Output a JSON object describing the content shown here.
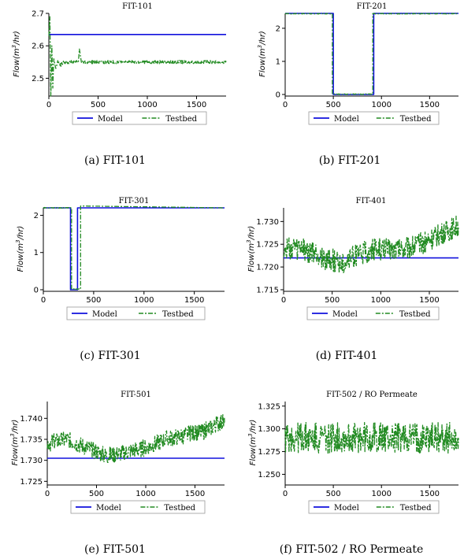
{
  "legend": {
    "model": "Model",
    "testbed": "Testbed"
  },
  "colors": {
    "model": "#1111dd",
    "testbed": "#228b22"
  },
  "chart_data": [
    {
      "type": "line",
      "title": "FIT-101",
      "caption": "(a) FIT-101",
      "ylabel_base": "Flow(m",
      "ylabel_sup": "3",
      "ylabel_tail": "/hr)",
      "xlim": [
        0,
        1800
      ],
      "ylim": [
        2.45,
        2.7
      ],
      "xticks": [
        0,
        500,
        1000,
        1500
      ],
      "yticks": [
        2.5,
        2.6,
        2.7
      ],
      "ytick_labels": [
        "2.5",
        "2.6",
        "2.7"
      ],
      "series": [
        {
          "name": "Model",
          "x": [
            0,
            1800
          ],
          "y": [
            2.635,
            2.635
          ]
        },
        {
          "name": "Testbed",
          "x": [
            0,
            10,
            20,
            30,
            40,
            50,
            70,
            90,
            120,
            150,
            200,
            250,
            300,
            310,
            330,
            400,
            500,
            600,
            700,
            800,
            900,
            1000,
            1100,
            1200,
            1300,
            1400,
            1500,
            1600,
            1700,
            1800
          ],
          "y": [
            2.63,
            2.69,
            2.43,
            2.6,
            2.47,
            2.56,
            2.53,
            2.55,
            2.54,
            2.55,
            2.55,
            2.55,
            2.55,
            2.59,
            2.55,
            2.55,
            2.55,
            2.55,
            2.55,
            2.55,
            2.55,
            2.55,
            2.55,
            2.55,
            2.55,
            2.55,
            2.55,
            2.55,
            2.55,
            2.55
          ],
          "noise": 0.005
        }
      ]
    },
    {
      "type": "line",
      "title": "FIT-201",
      "caption": "(b) FIT-201",
      "ylabel_base": "Flow(m",
      "ylabel_sup": "3",
      "ylabel_tail": "/hr)",
      "xlim": [
        0,
        1800
      ],
      "ylim": [
        0,
        2.45
      ],
      "xticks": [
        0,
        500,
        1000,
        1500
      ],
      "yticks": [
        0,
        1,
        2
      ],
      "ytick_labels": [
        "0",
        "1",
        "2"
      ],
      "series": [
        {
          "name": "Model",
          "x": [
            0,
            500,
            500,
            920,
            920,
            1800
          ],
          "y": [
            2.45,
            2.45,
            0,
            0,
            2.45,
            2.45
          ]
        },
        {
          "name": "Testbed",
          "x": [
            0,
            490,
            490,
            910,
            910,
            1800
          ],
          "y": [
            2.44,
            2.44,
            0.01,
            0.01,
            2.44,
            2.44
          ],
          "noise": 0.01
        }
      ]
    },
    {
      "type": "line",
      "title": "FIT-301",
      "caption": "(c) FIT-301",
      "ylabel_base": "Flow(m",
      "ylabel_sup": "3",
      "ylabel_tail": "/hr)",
      "xlim": [
        0,
        1800
      ],
      "ylim": [
        0,
        2.2
      ],
      "xticks": [
        0,
        500,
        1000,
        1500
      ],
      "yticks": [
        0,
        1,
        2
      ],
      "ytick_labels": [
        "0",
        "1",
        "2"
      ],
      "series": [
        {
          "name": "Model",
          "x": [
            0,
            270,
            270,
            340,
            340,
            1800
          ],
          "y": [
            2.2,
            2.2,
            0,
            0,
            2.2,
            2.2
          ]
        },
        {
          "name": "Testbed",
          "x": [
            0,
            280,
            280,
            370,
            370,
            1800
          ],
          "y": [
            2.2,
            2.2,
            0.02,
            0.02,
            2.25,
            2.2
          ],
          "noise": 0.01
        }
      ]
    },
    {
      "type": "line",
      "title": "FIT-401",
      "caption": "(d) FIT-401",
      "ylabel_base": "Flow(m",
      "ylabel_sup": "3",
      "ylabel_tail": "/hr)",
      "xlim": [
        0,
        1800
      ],
      "ylim": [
        1.715,
        1.733
      ],
      "xticks": [
        0,
        500,
        1000,
        1500
      ],
      "yticks": [
        1.715,
        1.72,
        1.725,
        1.73
      ],
      "ytick_labels": [
        "1.715",
        "1.720",
        "1.725",
        "1.730"
      ],
      "series": [
        {
          "name": "Model",
          "x": [
            0,
            1800
          ],
          "y": [
            1.722,
            1.722
          ]
        },
        {
          "name": "Testbed",
          "x": [
            0,
            200,
            400,
            600,
            800,
            1000,
            1200,
            1400,
            1600,
            1800
          ],
          "y": [
            1.724,
            1.724,
            1.722,
            1.721,
            1.723,
            1.724,
            1.724,
            1.725,
            1.727,
            1.729
          ],
          "noise": 0.0025
        }
      ]
    },
    {
      "type": "line",
      "title": "FIT-501",
      "caption": "(e) FIT-501",
      "ylabel_base": "Flow(m",
      "ylabel_sup": "3",
      "ylabel_tail": "/hr)",
      "xlim": [
        0,
        1800
      ],
      "ylim": [
        1.7245,
        1.744
      ],
      "xticks": [
        0,
        500,
        1000,
        1500
      ],
      "yticks": [
        1.725,
        1.73,
        1.735,
        1.74
      ],
      "ytick_labels": [
        "1.725",
        "1.730",
        "1.735",
        "1.740"
      ],
      "series": [
        {
          "name": "Model",
          "x": [
            0,
            1800
          ],
          "y": [
            1.7305,
            1.7305
          ]
        },
        {
          "name": "Testbed",
          "x": [
            0,
            200,
            400,
            600,
            800,
            1000,
            1200,
            1400,
            1600,
            1750,
            1800
          ],
          "y": [
            1.734,
            1.735,
            1.733,
            1.731,
            1.732,
            1.733,
            1.735,
            1.736,
            1.737,
            1.739,
            1.739
          ],
          "noise": 0.002
        }
      ]
    },
    {
      "type": "line",
      "title": "FIT-502 / RO Permeate",
      "caption": "(f) FIT-502 / RO Permeate",
      "ylabel_base": "Flow(m",
      "ylabel_sup": "3",
      "ylabel_tail": "/hr)",
      "xlim": [
        0,
        1800
      ],
      "ylim": [
        1.24,
        1.33
      ],
      "xticks": [
        0,
        500,
        1000,
        1500
      ],
      "yticks": [
        1.25,
        1.275,
        1.3,
        1.325
      ],
      "ytick_labels": [
        "1.250",
        "1.275",
        "1.300",
        "1.325"
      ],
      "series": [
        {
          "name": "Testbed",
          "x": [
            0,
            1800
          ],
          "y": [
            1.29,
            1.29
          ],
          "noise": 0.017
        }
      ]
    }
  ]
}
